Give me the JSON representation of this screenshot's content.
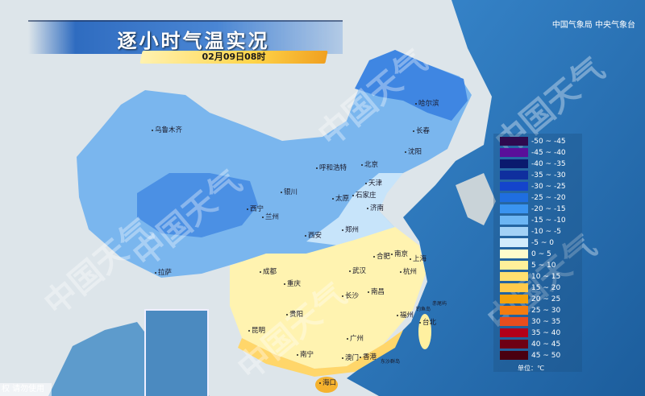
{
  "header": {
    "title": "逐小时气温实况",
    "datetime": "02月09日08时",
    "agency": "中国气象局 中央气象台"
  },
  "watermark": "中国天气",
  "copyright_fragment": "权 请勿使用",
  "cities": [
    "乌鲁木齐",
    "哈尔滨",
    "长春",
    "沈阳",
    "呼和浩特",
    "北京",
    "天津",
    "石家庄",
    "太原",
    "银川",
    "西宁",
    "兰州",
    "济南",
    "郑州",
    "西安",
    "合肥",
    "南京",
    "上海",
    "杭州",
    "成都",
    "武汉",
    "重庆",
    "长沙",
    "南昌",
    "拉萨",
    "贵阳",
    "福州",
    "台北",
    "昆明",
    "广州",
    "南宁",
    "澳门",
    "香港",
    "海口"
  ],
  "islands": [
    "东沙群岛",
    "钓鱼岛",
    "赤尾屿"
  ],
  "legend": {
    "unit": "单位：℃",
    "items": [
      {
        "label": "-50 ~ -45",
        "color": "#2e0a4f"
      },
      {
        "label": "-45 ~ -40",
        "color": "#5a0f9a"
      },
      {
        "label": "-40 ~ -35",
        "color": "#0a1a6e"
      },
      {
        "label": "-35 ~ -30",
        "color": "#0f2f9e"
      },
      {
        "label": "-30 ~ -25",
        "color": "#1444cc"
      },
      {
        "label": "-25 ~ -20",
        "color": "#1f6ee0"
      },
      {
        "label": "-20 ~ -15",
        "color": "#3a94f0"
      },
      {
        "label": "-15 ~ -10",
        "color": "#6cb6f4"
      },
      {
        "label": "-10 ~ -5",
        "color": "#a3d2f6"
      },
      {
        "label": "-5 ~ 0",
        "color": "#d2ecfc"
      },
      {
        "label": "0 ~ 5",
        "color": "#fffbcc"
      },
      {
        "label": "5 ~ 10",
        "color": "#fff09a"
      },
      {
        "label": "10 ~ 15",
        "color": "#ffe070"
      },
      {
        "label": "15 ~ 20",
        "color": "#ffca4a"
      },
      {
        "label": "20 ~ 25",
        "color": "#f5a20a"
      },
      {
        "label": "25 ~ 30",
        "color": "#f47c10"
      },
      {
        "label": "30 ~ 35",
        "color": "#e84d1e"
      },
      {
        "label": "35 ~ 40",
        "color": "#b3001a"
      },
      {
        "label": "40 ~ 45",
        "color": "#6e0014"
      },
      {
        "label": "45 ~ 50",
        "color": "#4a0010"
      }
    ]
  }
}
